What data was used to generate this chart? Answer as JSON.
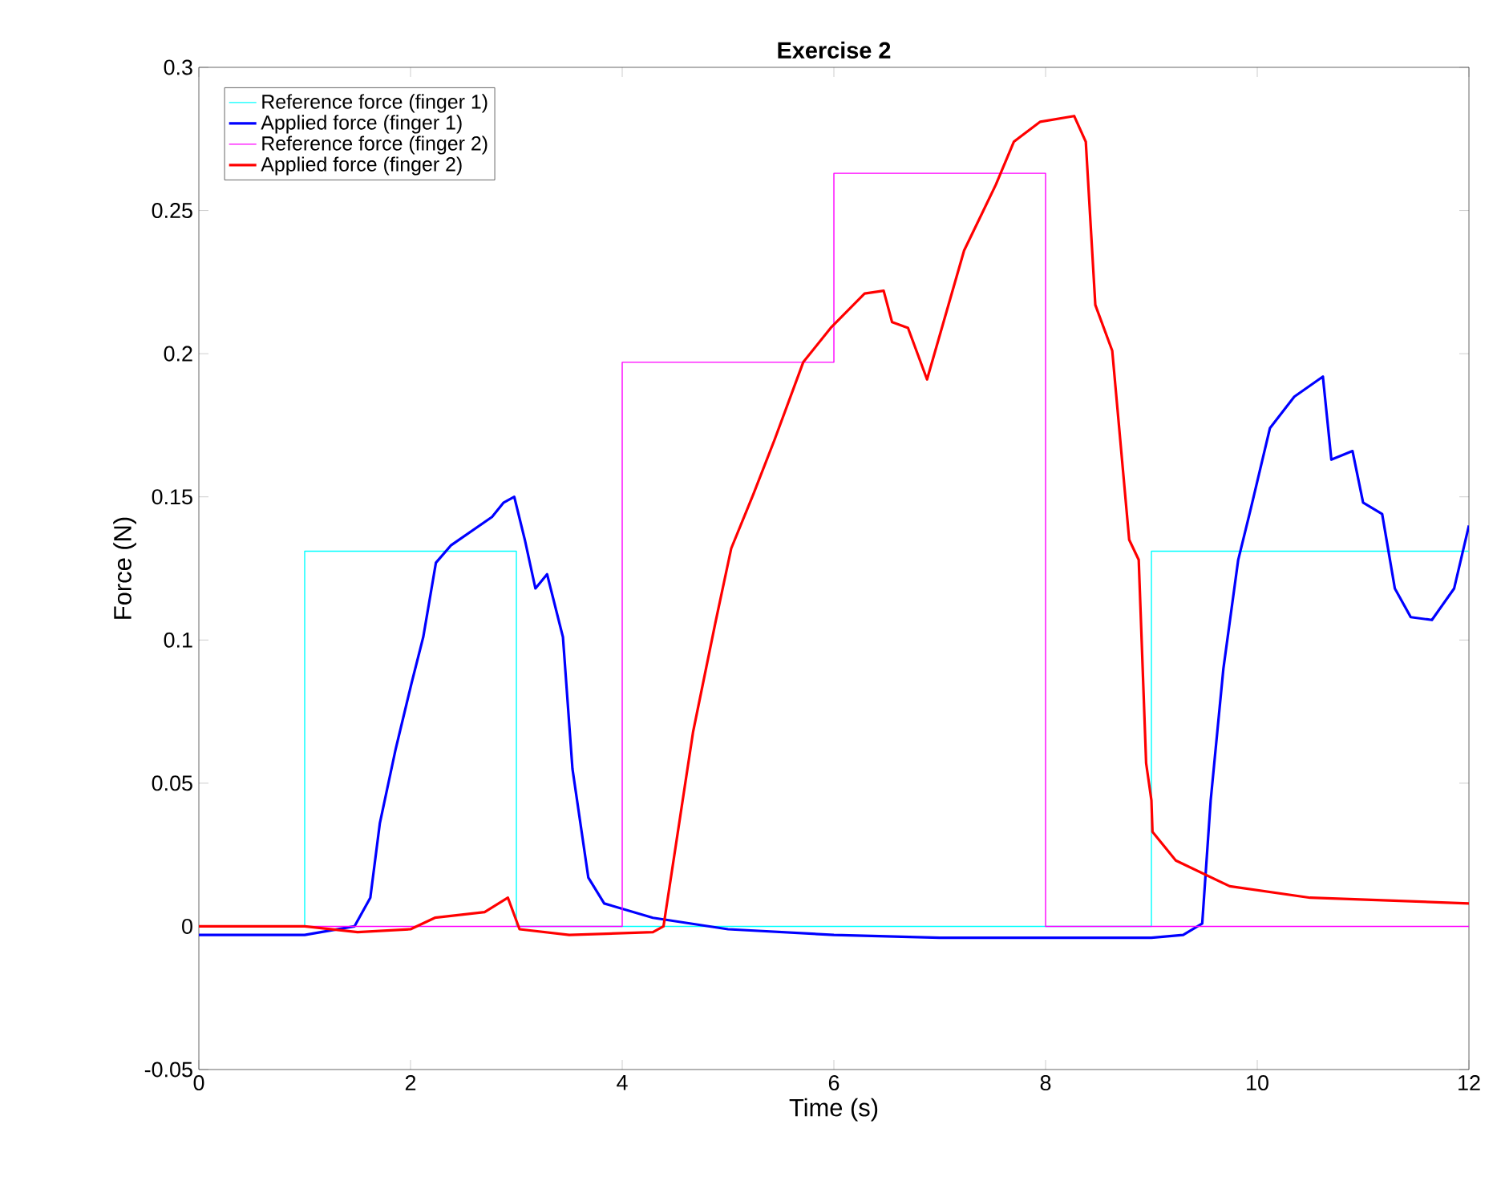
{
  "chart_data": {
    "type": "line",
    "title": "Exercise 2",
    "xlabel": "Time (s)",
    "ylabel": "Force (N)",
    "xlim": [
      0,
      12
    ],
    "ylim": [
      -0.05,
      0.3
    ],
    "xticks": [
      0,
      2,
      4,
      6,
      8,
      10,
      12
    ],
    "yticks": [
      -0.05,
      0,
      0.05,
      0.1,
      0.15,
      0.2,
      0.25,
      0.3
    ],
    "grid": false,
    "legend": "top left",
    "marker": "none",
    "line_style": "solid",
    "series": [
      {
        "name": "Reference force (finger 1)",
        "type": "step",
        "color": "#00ffff",
        "x": [
          0,
          1,
          3,
          9,
          12
        ],
        "values": [
          0,
          0.131,
          0,
          0.131,
          0.131
        ]
      },
      {
        "name": "Applied force (finger 1)",
        "color": "#0000ff",
        "x": [
          0,
          0.5,
          1,
          1.47,
          1.62,
          1.71,
          1.86,
          2.01,
          2.12,
          2.24,
          2.38,
          2.77,
          2.88,
          2.98,
          3.08,
          3.18,
          3.29,
          3.44,
          3.53,
          3.68,
          3.83,
          4.29,
          5,
          6,
          7,
          8,
          9,
          9.3,
          9.48,
          9.56,
          9.68,
          9.82,
          9.94,
          10.12,
          10.35,
          10.62,
          10.7,
          10.9,
          11,
          11.18,
          11.3,
          11.45,
          11.65,
          11.86,
          12
        ],
        "values": [
          -0.003,
          -0.003,
          -0.003,
          0.0,
          0.01,
          0.036,
          0.062,
          0.085,
          0.101,
          0.127,
          0.133,
          0.143,
          0.148,
          0.15,
          0.135,
          0.118,
          0.123,
          0.101,
          0.055,
          0.017,
          0.008,
          0.003,
          -0.001,
          -0.003,
          -0.004,
          -0.004,
          -0.004,
          -0.003,
          0.001,
          0.044,
          0.09,
          0.128,
          0.146,
          0.174,
          0.185,
          0.192,
          0.163,
          0.166,
          0.148,
          0.144,
          0.118,
          0.108,
          0.107,
          0.118,
          0.14
        ]
      },
      {
        "name": "Reference force (finger 2)",
        "type": "step",
        "color": "#ff00ff",
        "x": [
          0,
          4,
          6,
          8,
          12
        ],
        "values": [
          0,
          0.197,
          0.263,
          0,
          0
        ]
      },
      {
        "name": "Applied force (finger 2)",
        "color": "#ff0000",
        "x": [
          0,
          1,
          1.5,
          2,
          2.23,
          2.7,
          2.92,
          3.03,
          3.5,
          4.29,
          4.39,
          4.67,
          4.88,
          5.03,
          5.24,
          5.44,
          5.71,
          5.97,
          6.29,
          6.47,
          6.55,
          6.7,
          6.88,
          7.02,
          7.23,
          7.53,
          7.7,
          7.95,
          8.27,
          8.38,
          8.47,
          8.63,
          8.79,
          8.88,
          8.95,
          9,
          9.01,
          9.23,
          9.74,
          10.5,
          12
        ],
        "values": [
          0,
          0,
          -0.002,
          -0.001,
          0.003,
          0.005,
          0.01,
          -0.001,
          -0.003,
          -0.002,
          0,
          0.068,
          0.106,
          0.132,
          0.151,
          0.17,
          0.197,
          0.209,
          0.221,
          0.222,
          0.211,
          0.209,
          0.191,
          0.209,
          0.236,
          0.259,
          0.274,
          0.281,
          0.283,
          0.274,
          0.217,
          0.201,
          0.135,
          0.128,
          0.057,
          0.044,
          0.033,
          0.023,
          0.014,
          0.01,
          0.008
        ]
      }
    ]
  }
}
